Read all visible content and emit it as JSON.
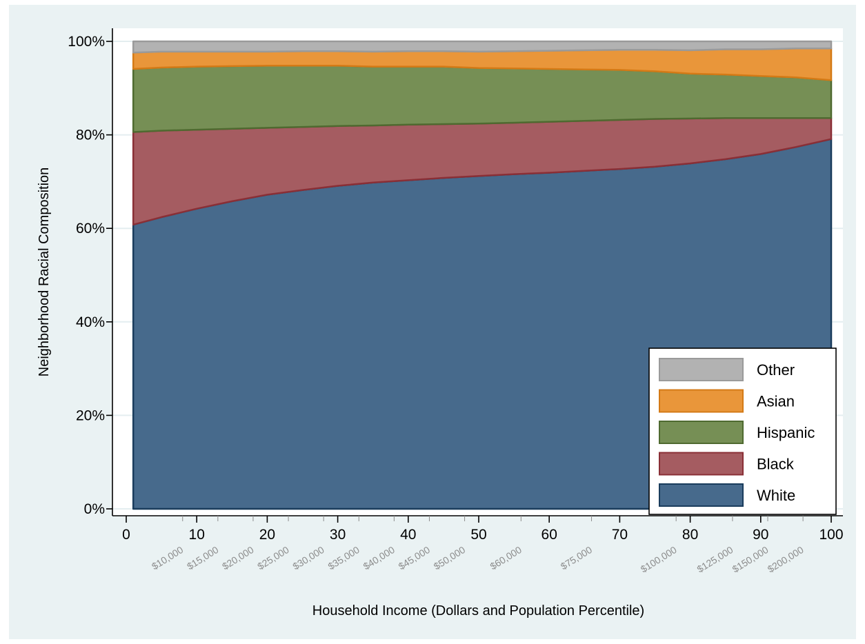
{
  "chart_data": {
    "type": "area",
    "stacked": true,
    "xlabel": "Household Income (Dollars and Population Percentile)",
    "ylabel": "Neighborhood Racial Composition",
    "xlim": [
      0,
      100
    ],
    "ylim": [
      0,
      100
    ],
    "x_ticks": [
      {
        "value": 0,
        "label": "0"
      },
      {
        "value": 10,
        "label": "10"
      },
      {
        "value": 20,
        "label": "20"
      },
      {
        "value": 30,
        "label": "30"
      },
      {
        "value": 40,
        "label": "40"
      },
      {
        "value": 50,
        "label": "50"
      },
      {
        "value": 60,
        "label": "60"
      },
      {
        "value": 70,
        "label": "70"
      },
      {
        "value": 80,
        "label": "80"
      },
      {
        "value": 90,
        "label": "90"
      },
      {
        "value": 100,
        "label": "100"
      }
    ],
    "y_ticks": [
      {
        "value": 0,
        "label": "0%"
      },
      {
        "value": 20,
        "label": "20%"
      },
      {
        "value": 40,
        "label": "40%"
      },
      {
        "value": 60,
        "label": "60%"
      },
      {
        "value": 80,
        "label": "80%"
      },
      {
        "value": 100,
        "label": "100%"
      }
    ],
    "income_ticks": [
      {
        "value": 8,
        "label": "$10,000"
      },
      {
        "value": 13,
        "label": "$15,000"
      },
      {
        "value": 18,
        "label": "$20,000"
      },
      {
        "value": 23,
        "label": "$25,000"
      },
      {
        "value": 28,
        "label": "$30,000"
      },
      {
        "value": 33,
        "label": "$35,000"
      },
      {
        "value": 38,
        "label": "$40,000"
      },
      {
        "value": 43,
        "label": "$45,000"
      },
      {
        "value": 48,
        "label": "$50,000"
      },
      {
        "value": 56,
        "label": "$60,000"
      },
      {
        "value": 66,
        "label": "$75,000"
      },
      {
        "value": 78,
        "label": "$100,000"
      },
      {
        "value": 86,
        "label": "$125,000"
      },
      {
        "value": 91,
        "label": "$150,000"
      },
      {
        "value": 96,
        "label": "$200,000"
      }
    ],
    "x": [
      1,
      5,
      10,
      15,
      20,
      25,
      30,
      35,
      40,
      45,
      50,
      55,
      60,
      65,
      70,
      75,
      80,
      85,
      90,
      95,
      100
    ],
    "series": [
      {
        "name": "White",
        "color": "#476a8c",
        "edge": "#1a3c5c",
        "values": [
          60.8,
          62.4,
          64.2,
          65.8,
          67.2,
          68.2,
          69.1,
          69.8,
          70.3,
          70.8,
          71.2,
          71.6,
          71.9,
          72.3,
          72.7,
          73.2,
          73.9,
          74.8,
          75.9,
          77.4,
          79.1
        ]
      },
      {
        "name": "Black",
        "color": "#a55c61",
        "edge": "#8a2f36",
        "values": [
          19.8,
          18.5,
          16.9,
          15.5,
          14.3,
          13.5,
          12.8,
          12.2,
          11.9,
          11.5,
          11.2,
          11.0,
          10.9,
          10.7,
          10.5,
          10.2,
          9.6,
          8.8,
          7.7,
          6.2,
          4.5
        ]
      },
      {
        "name": "Hispanic",
        "color": "#768f55",
        "edge": "#4f6a30",
        "values": [
          13.5,
          13.5,
          13.5,
          13.4,
          13.3,
          13.1,
          12.9,
          12.6,
          12.4,
          12.3,
          11.9,
          11.6,
          11.3,
          11.0,
          10.7,
          10.2,
          9.6,
          9.3,
          9.0,
          8.7,
          8.1
        ]
      },
      {
        "name": "Asian",
        "color": "#e9963a",
        "edge": "#d47a16",
        "values": [
          3.5,
          3.4,
          3.2,
          3.1,
          3.0,
          3.1,
          3.1,
          3.2,
          3.3,
          3.3,
          3.5,
          3.7,
          3.9,
          4.1,
          4.3,
          4.6,
          5.0,
          5.4,
          5.7,
          6.2,
          6.8
        ]
      },
      {
        "name": "Other",
        "color": "#b2b2b2",
        "edge": "#9a9a9a",
        "values": [
          2.4,
          2.2,
          2.2,
          2.2,
          2.2,
          2.1,
          2.1,
          2.2,
          2.1,
          2.1,
          2.2,
          2.1,
          2.0,
          1.9,
          1.8,
          1.8,
          1.9,
          1.7,
          1.7,
          1.5,
          1.5
        ]
      }
    ],
    "legend_position": "bottom-right",
    "legend_order": [
      "Other",
      "Asian",
      "Hispanic",
      "Black",
      "White"
    ]
  }
}
